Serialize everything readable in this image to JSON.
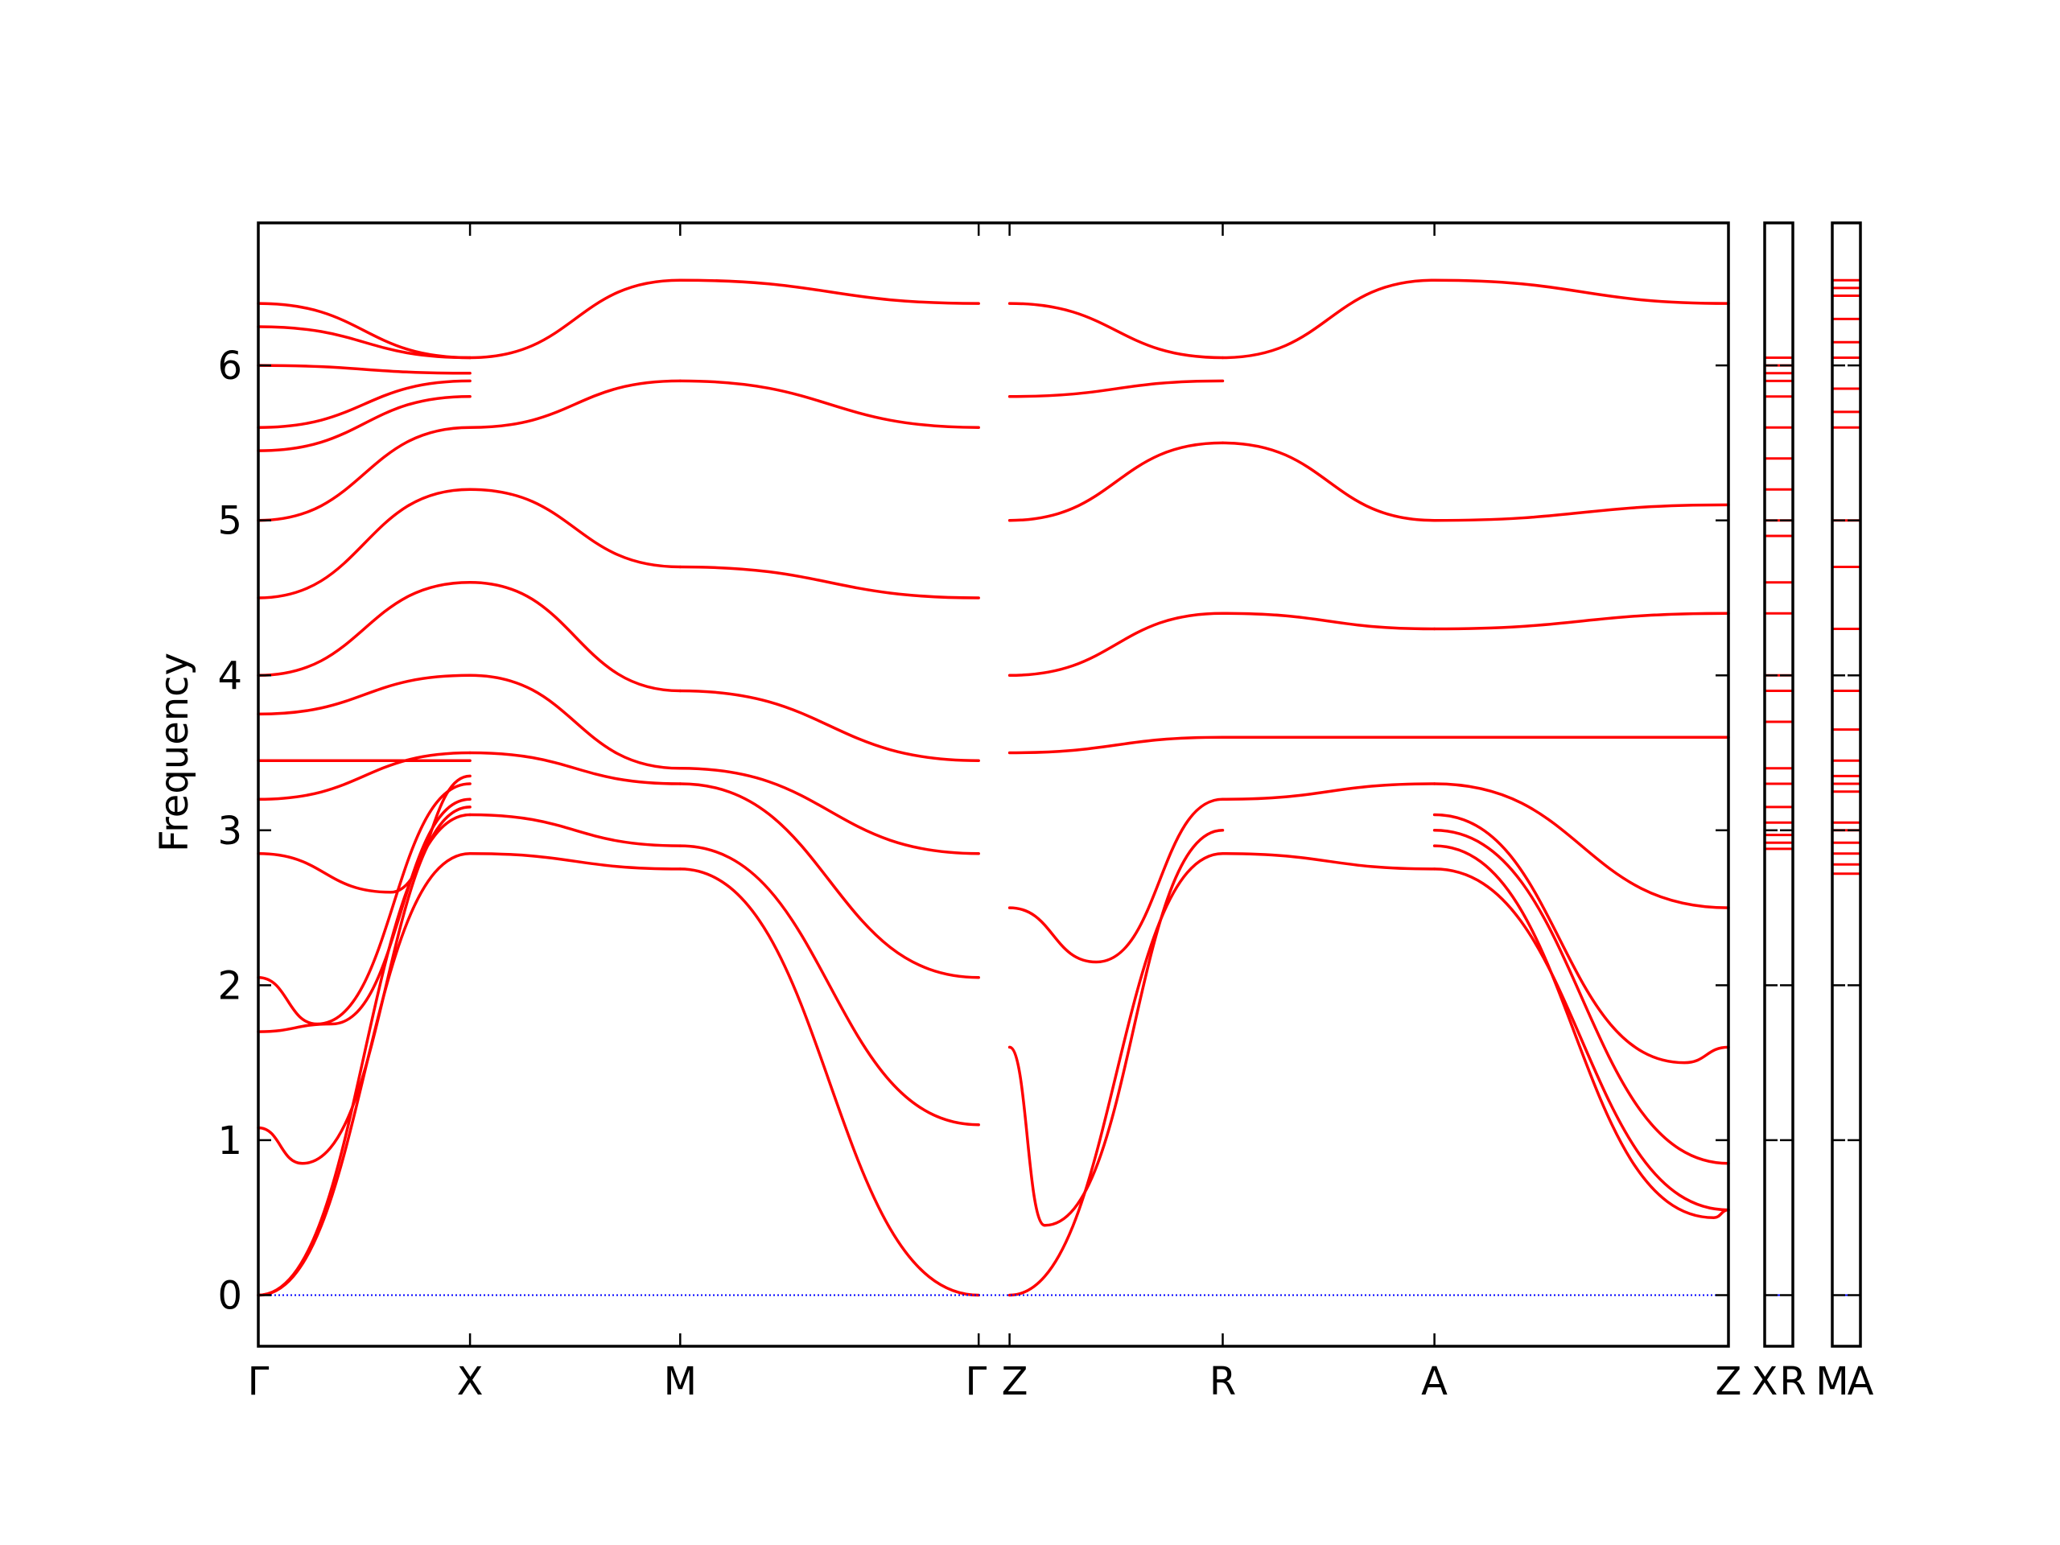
{
  "chart_data": {
    "type": "line",
    "title": "",
    "ylabel": "Frequency",
    "xlabel": "",
    "ylim": [
      -0.33,
      6.92
    ],
    "yticks": [
      0,
      1,
      2,
      3,
      4,
      5,
      6
    ],
    "grid": false,
    "legend": "none",
    "colors": {
      "bands": "#ff0000",
      "zero_line": "#0000ff",
      "axes": "#000000"
    },
    "panels": [
      {
        "id": "main",
        "path": "Γ-X-M-Γ|Z-R-A-Z",
        "xlim": [
          0,
          1
        ],
        "labels": [
          {
            "text": "Γ",
            "x": 0.0
          },
          {
            "text": "X",
            "x": 0.144
          },
          {
            "text": "M",
            "x": 0.287
          },
          {
            "text": "Γ",
            "x": 0.49
          },
          {
            "text": "Z",
            "x": 0.511
          },
          {
            "text": "R",
            "x": 0.656
          },
          {
            "text": "A",
            "x": 0.8
          },
          {
            "text": "Z",
            "x": 1.0
          }
        ]
      },
      {
        "id": "XR",
        "labels": [
          "X",
          "R"
        ]
      },
      {
        "id": "MA",
        "labels": [
          "M",
          "A"
        ]
      }
    ],
    "series": [
      {
        "segment": "Γ-X",
        "x": [
          0,
          0.144
        ],
        "y": [
          0,
          2.85
        ]
      },
      {
        "segment": "Γ-X",
        "x": [
          0,
          0.144
        ],
        "y": [
          0,
          3.1
        ]
      },
      {
        "segment": "Γ-X",
        "x": [
          0,
          0.03,
          0.144
        ],
        "y": [
          1.08,
          0.85,
          3.15
        ]
      },
      {
        "segment": "Γ-X",
        "x": [
          0,
          0.05,
          0.144
        ],
        "y": [
          1.7,
          1.75,
          3.2
        ]
      },
      {
        "segment": "Γ-X",
        "x": [
          0,
          0.04,
          0.144
        ],
        "y": [
          2.05,
          1.75,
          3.3
        ]
      },
      {
        "segment": "Γ-X",
        "x": [
          0,
          0.09,
          0.144
        ],
        "y": [
          2.85,
          2.6,
          3.35
        ]
      },
      {
        "segment": "Γ-X",
        "x": [
          0,
          0.144
        ],
        "y": [
          3.2,
          3.5
        ]
      },
      {
        "segment": "Γ-X",
        "x": [
          0,
          0.144
        ],
        "y": [
          3.45,
          3.45
        ]
      },
      {
        "segment": "Γ-X",
        "x": [
          0,
          0.144
        ],
        "y": [
          3.75,
          4.0
        ]
      },
      {
        "segment": "Γ-X",
        "x": [
          0,
          0.144
        ],
        "y": [
          4.0,
          4.6
        ]
      },
      {
        "segment": "Γ-X",
        "x": [
          0,
          0.144
        ],
        "y": [
          4.5,
          5.2
        ]
      },
      {
        "segment": "Γ-X",
        "x": [
          0,
          0.144
        ],
        "y": [
          5.0,
          5.6
        ]
      },
      {
        "segment": "Γ-X",
        "x": [
          0,
          0.144
        ],
        "y": [
          5.45,
          5.8
        ]
      },
      {
        "segment": "Γ-X",
        "x": [
          0,
          0.144
        ],
        "y": [
          5.6,
          5.9
        ]
      },
      {
        "segment": "Γ-X",
        "x": [
          0,
          0.144
        ],
        "y": [
          6.0,
          5.95
        ]
      },
      {
        "segment": "Γ-X",
        "x": [
          0,
          0.144
        ],
        "y": [
          6.25,
          6.05
        ]
      },
      {
        "segment": "Γ-X",
        "x": [
          0,
          0.144
        ],
        "y": [
          6.4,
          6.05
        ]
      },
      {
        "segment": "X-M",
        "x": [
          0.144,
          0.287
        ],
        "y": [
          2.85,
          2.75
        ]
      },
      {
        "segment": "X-M",
        "x": [
          0.144,
          0.287
        ],
        "y": [
          3.1,
          2.9
        ]
      },
      {
        "segment": "X-M",
        "x": [
          0.144,
          0.287
        ],
        "y": [
          3.5,
          3.3
        ]
      },
      {
        "segment": "X-M",
        "x": [
          0.144,
          0.287
        ],
        "y": [
          4.0,
          3.4
        ]
      },
      {
        "segment": "X-M",
        "x": [
          0.144,
          0.287
        ],
        "y": [
          4.6,
          3.9
        ]
      },
      {
        "segment": "X-M",
        "x": [
          0.144,
          0.287
        ],
        "y": [
          5.2,
          4.7
        ]
      },
      {
        "segment": "X-M",
        "x": [
          0.144,
          0.287
        ],
        "y": [
          5.6,
          5.9
        ]
      },
      {
        "segment": "X-M",
        "x": [
          0.144,
          0.287
        ],
        "y": [
          6.05,
          6.55
        ]
      },
      {
        "segment": "M-Γ",
        "x": [
          0.287,
          0.49
        ],
        "y": [
          2.75,
          0
        ]
      },
      {
        "segment": "M-Γ",
        "x": [
          0.287,
          0.49
        ],
        "y": [
          2.9,
          1.1
        ]
      },
      {
        "segment": "M-Γ",
        "x": [
          0.287,
          0.49
        ],
        "y": [
          3.3,
          2.05
        ]
      },
      {
        "segment": "M-Γ",
        "x": [
          0.287,
          0.49
        ],
        "y": [
          3.4,
          2.85
        ]
      },
      {
        "segment": "M-Γ",
        "x": [
          0.287,
          0.49
        ],
        "y": [
          3.9,
          3.45
        ]
      },
      {
        "segment": "M-Γ",
        "x": [
          0.287,
          0.49
        ],
        "y": [
          4.7,
          4.5
        ]
      },
      {
        "segment": "M-Γ",
        "x": [
          0.287,
          0.49
        ],
        "y": [
          5.9,
          5.6
        ]
      },
      {
        "segment": "M-Γ",
        "x": [
          0.287,
          0.49
        ],
        "y": [
          6.55,
          6.4
        ]
      },
      {
        "segment": "Z-R",
        "x": [
          0.511,
          0.656
        ],
        "y": [
          0,
          2.85
        ]
      },
      {
        "segment": "Z-R",
        "x": [
          0.511,
          0.535,
          0.656
        ],
        "y": [
          1.6,
          0.45,
          3.0
        ]
      },
      {
        "segment": "Z-R",
        "x": [
          0.511,
          0.57,
          0.656
        ],
        "y": [
          2.5,
          2.15,
          3.2
        ]
      },
      {
        "segment": "Z-R",
        "x": [
          0.511,
          0.656
        ],
        "y": [
          3.5,
          3.6
        ]
      },
      {
        "segment": "Z-R",
        "x": [
          0.511,
          0.656
        ],
        "y": [
          4.0,
          4.4
        ]
      },
      {
        "segment": "Z-R",
        "x": [
          0.511,
          0.656
        ],
        "y": [
          5.0,
          5.5
        ]
      },
      {
        "segment": "Z-R",
        "x": [
          0.511,
          0.656
        ],
        "y": [
          5.8,
          5.9
        ]
      },
      {
        "segment": "Z-R",
        "x": [
          0.511,
          0.656
        ],
        "y": [
          6.4,
          6.05
        ]
      },
      {
        "segment": "R-A",
        "x": [
          0.656,
          0.8
        ],
        "y": [
          2.85,
          2.75
        ]
      },
      {
        "segment": "R-A",
        "x": [
          0.656,
          0.8
        ],
        "y": [
          3.2,
          3.3
        ]
      },
      {
        "segment": "R-A",
        "x": [
          0.656,
          0.8
        ],
        "y": [
          3.6,
          3.6
        ]
      },
      {
        "segment": "R-A",
        "x": [
          0.656,
          0.8
        ],
        "y": [
          4.4,
          4.3
        ]
      },
      {
        "segment": "R-A",
        "x": [
          0.656,
          0.8
        ],
        "y": [
          5.5,
          5.0
        ]
      },
      {
        "segment": "R-A",
        "x": [
          0.656,
          0.8
        ],
        "y": [
          6.05,
          6.55
        ]
      },
      {
        "segment": "A-Z",
        "x": [
          0.8,
          1.0
        ],
        "y": [
          2.75,
          0.55
        ]
      },
      {
        "segment": "A-Z",
        "x": [
          0.8,
          0.99,
          1.0
        ],
        "y": [
          2.9,
          0.5,
          0.55
        ]
      },
      {
        "segment": "A-Z",
        "x": [
          0.8,
          1.0
        ],
        "y": [
          3.0,
          0.85
        ]
      },
      {
        "segment": "A-Z",
        "x": [
          0.8,
          0.97,
          1.0
        ],
        "y": [
          3.1,
          1.5,
          1.6
        ]
      },
      {
        "segment": "A-Z",
        "x": [
          0.8,
          1.0
        ],
        "y": [
          3.3,
          2.5
        ]
      },
      {
        "segment": "A-Z",
        "x": [
          0.8,
          1.0
        ],
        "y": [
          3.6,
          3.6
        ]
      },
      {
        "segment": "A-Z",
        "x": [
          0.8,
          1.0
        ],
        "y": [
          4.3,
          4.4
        ]
      },
      {
        "segment": "A-Z",
        "x": [
          0.8,
          1.0
        ],
        "y": [
          5.0,
          5.1
        ]
      },
      {
        "segment": "A-Z",
        "x": [
          0.8,
          1.0
        ],
        "y": [
          6.55,
          6.4
        ]
      }
    ],
    "side_panel_XR": [
      2.88,
      2.92,
      2.97,
      3.05,
      3.15,
      3.3,
      3.4,
      3.7,
      3.9,
      4.0,
      4.4,
      4.6,
      4.9,
      5.0,
      5.2,
      5.4,
      5.6,
      5.8,
      5.9,
      5.95,
      6.0,
      6.05
    ],
    "side_panel_MA": [
      2.72,
      2.78,
      2.85,
      2.92,
      3.0,
      3.05,
      3.25,
      3.3,
      3.35,
      3.45,
      3.65,
      3.9,
      4.3,
      4.7,
      5.0,
      5.6,
      5.7,
      5.85,
      6.05,
      6.15,
      6.3,
      6.45,
      6.5,
      6.55
    ]
  }
}
